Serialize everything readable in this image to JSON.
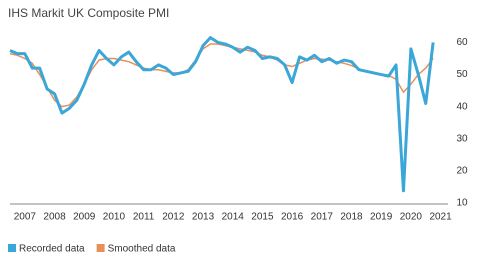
{
  "chart_data": {
    "type": "line",
    "title": "IHS Markit UK Composite PMI",
    "x": [
      2007.0,
      2007.25,
      2007.5,
      2007.75,
      2008.0,
      2008.25,
      2008.5,
      2008.75,
      2009.0,
      2009.25,
      2009.5,
      2009.75,
      2010.0,
      2010.25,
      2010.5,
      2010.75,
      2011.0,
      2011.25,
      2011.5,
      2011.75,
      2012.0,
      2012.25,
      2012.5,
      2012.75,
      2013.0,
      2013.25,
      2013.5,
      2013.75,
      2014.0,
      2014.25,
      2014.5,
      2014.75,
      2015.0,
      2015.25,
      2015.5,
      2015.75,
      2016.0,
      2016.25,
      2016.5,
      2016.75,
      2017.0,
      2017.25,
      2017.5,
      2017.75,
      2018.0,
      2018.25,
      2018.5,
      2018.75,
      2019.0,
      2019.25,
      2019.5,
      2019.75,
      2020.0,
      2020.25,
      2020.5,
      2020.75,
      2021.0,
      2021.25
    ],
    "series": [
      {
        "name": "Recorded data",
        "color": "#3ba6d8",
        "values": [
          57.5,
          56.5,
          56.5,
          52,
          52,
          45.5,
          44,
          38,
          39.5,
          42,
          47,
          53,
          57.5,
          55,
          53,
          55.5,
          57,
          54,
          51.5,
          51.5,
          53,
          52,
          50,
          50.5,
          51,
          54,
          59,
          61.5,
          60,
          59.5,
          58.5,
          57,
          58.5,
          57.5,
          55,
          55.5,
          55,
          53,
          47.5,
          55.5,
          54.5,
          56,
          54,
          55,
          53.5,
          54.5,
          54,
          51.5,
          51,
          50.5,
          50,
          49.5,
          53,
          13.8,
          58,
          50,
          41,
          60
        ]
      },
      {
        "name": "Smoothed data",
        "color": "#e8905a",
        "values": [
          56.5,
          56,
          55,
          53.5,
          50,
          46,
          42,
          40,
          40.5,
          43,
          47,
          51.5,
          54.5,
          55,
          55,
          54.5,
          54,
          53,
          52,
          51.5,
          51.5,
          51,
          50.5,
          50.5,
          51.5,
          54.5,
          58,
          59.5,
          59.5,
          59,
          58.5,
          58,
          57.5,
          57,
          56,
          55.5,
          54.5,
          53,
          52.5,
          53.5,
          54.5,
          55,
          54.8,
          54.5,
          54,
          53.5,
          52.8,
          51.8,
          51,
          50.3,
          50,
          49.8,
          48.5,
          44.5,
          47,
          50,
          52,
          55
        ]
      }
    ],
    "xlim": [
      2007.0,
      2021.75
    ],
    "xticks": [
      {
        "value": 2007.5,
        "label": "2007"
      },
      {
        "value": 2008.5,
        "label": "2008"
      },
      {
        "value": 2009.5,
        "label": "2009"
      },
      {
        "value": 2010.5,
        "label": "2010"
      },
      {
        "value": 2011.5,
        "label": "2011"
      },
      {
        "value": 2012.5,
        "label": "2012"
      },
      {
        "value": 2013.5,
        "label": "2013"
      },
      {
        "value": 2014.5,
        "label": "2014"
      },
      {
        "value": 2015.5,
        "label": "2015"
      },
      {
        "value": 2016.5,
        "label": "2016"
      },
      {
        "value": 2017.5,
        "label": "2017"
      },
      {
        "value": 2018.5,
        "label": "2018"
      },
      {
        "value": 2019.5,
        "label": "2019"
      },
      {
        "value": 2020.5,
        "label": "2020"
      },
      {
        "value": 2021.5,
        "label": "2021"
      }
    ],
    "ylim": [
      10,
      62
    ],
    "yticks": [
      10,
      20,
      30,
      40,
      50,
      60
    ],
    "grid": false
  }
}
